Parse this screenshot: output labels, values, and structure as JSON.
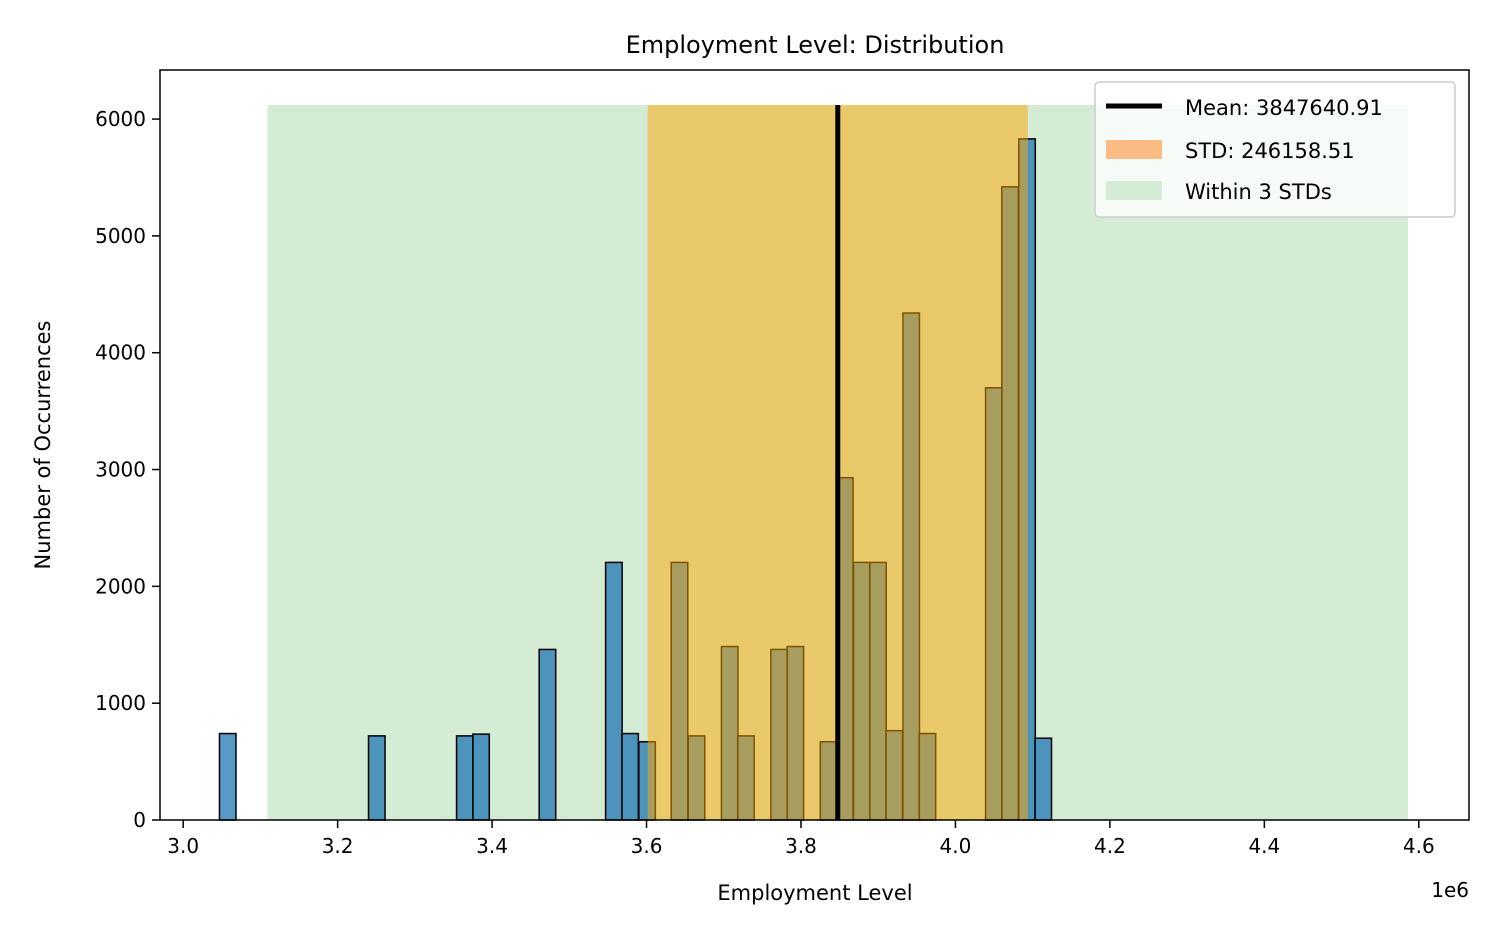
{
  "chart_data": {
    "type": "bar",
    "title": "Employment Level: Distribution",
    "xlabel": "Employment Level",
    "ylabel": "Number of Occurrences",
    "x_offset_label": "1e6",
    "xlim": [
      2.97,
      4.665
    ],
    "ylim": [
      0,
      6420
    ],
    "x_ticks": [
      {
        "v": 3.0,
        "label": "3.0"
      },
      {
        "v": 3.2,
        "label": "3.2"
      },
      {
        "v": 3.4,
        "label": "3.4"
      },
      {
        "v": 3.6,
        "label": "3.6"
      },
      {
        "v": 3.8,
        "label": "3.8"
      },
      {
        "v": 4.0,
        "label": "4.0"
      },
      {
        "v": 4.2,
        "label": "4.2"
      },
      {
        "v": 4.4,
        "label": "4.4"
      },
      {
        "v": 4.6,
        "label": "4.6"
      }
    ],
    "y_ticks": [
      {
        "v": 0,
        "label": "0"
      },
      {
        "v": 1000,
        "label": "1000"
      },
      {
        "v": 2000,
        "label": "2000"
      },
      {
        "v": 3000,
        "label": "3000"
      },
      {
        "v": 4000,
        "label": "4000"
      },
      {
        "v": 5000,
        "label": "5000"
      },
      {
        "v": 6000,
        "label": "6000"
      }
    ],
    "bin_width": 0.0214,
    "bins": [
      {
        "x": 3.047,
        "count": 740
      },
      {
        "x": 3.24,
        "count": 720
      },
      {
        "x": 3.354,
        "count": 720
      },
      {
        "x": 3.375,
        "count": 735
      },
      {
        "x": 3.461,
        "count": 1460
      },
      {
        "x": 3.547,
        "count": 2205
      },
      {
        "x": 3.568,
        "count": 740
      },
      {
        "x": 3.59,
        "count": 670
      },
      {
        "x": 3.632,
        "count": 2205
      },
      {
        "x": 3.654,
        "count": 720
      },
      {
        "x": 3.697,
        "count": 1485
      },
      {
        "x": 3.718,
        "count": 720
      },
      {
        "x": 3.761,
        "count": 1460
      },
      {
        "x": 3.782,
        "count": 1485
      },
      {
        "x": 3.825,
        "count": 670
      },
      {
        "x": 3.846,
        "count": 2930
      },
      {
        "x": 3.868,
        "count": 2205
      },
      {
        "x": 3.889,
        "count": 2205
      },
      {
        "x": 3.91,
        "count": 765
      },
      {
        "x": 3.932,
        "count": 4340
      },
      {
        "x": 3.953,
        "count": 740
      },
      {
        "x": 4.039,
        "count": 3700
      },
      {
        "x": 4.06,
        "count": 5420
      },
      {
        "x": 4.082,
        "count": 5830
      },
      {
        "x": 4.103,
        "count": 700
      }
    ],
    "bar_color": "#1f77b4",
    "mean": 3.84764091,
    "std": 0.24615851,
    "band_top": 6120,
    "std_color": "#ffbb78",
    "three_std_color": "#d4ecd4",
    "mean_color": "#000000",
    "legend": {
      "placement": "top-right",
      "mean_label": "Mean: 3847640.91",
      "std_label": "STD: 246158.51",
      "within_label": "Within 3 STDs"
    }
  }
}
